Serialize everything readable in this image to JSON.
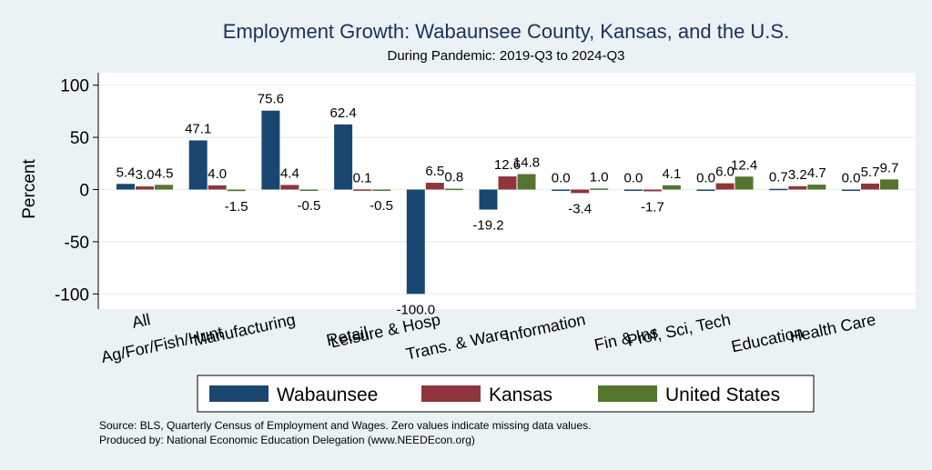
{
  "chart_data": {
    "type": "bar",
    "title": "Employment Growth: Wabaunsee County, Kansas, and the U.S.",
    "subtitle": "During Pandemic: 2019-Q3 to 2024-Q3",
    "xlabel": "",
    "ylabel": "Percent",
    "ylim": [
      -115,
      115
    ],
    "yticks": [
      100,
      50,
      0,
      -50,
      -100
    ],
    "grid": true,
    "legend_position": "bottom",
    "categories": [
      "All",
      "Ag/For/Fish/Hunt",
      "Manufacturing",
      "Retail",
      "Leisure & Hosp",
      "Trans. & Ware.",
      "Information",
      "Fin & Ins",
      "Prof, Sci, Tech",
      "Education",
      "Health Care"
    ],
    "series": [
      {
        "name": "Wabaunsee",
        "color": "#1a476f",
        "values": [
          5.4,
          47.1,
          75.6,
          62.4,
          -100.0,
          -19.2,
          0.0,
          0.0,
          0.0,
          0.7,
          0.0
        ],
        "labels": [
          "5.4",
          "47.1",
          "75.6",
          "62.4",
          "-100.0",
          "-19.2",
          "0.0",
          "0.0",
          "0.0",
          "0.7",
          "0.0"
        ]
      },
      {
        "name": "Kansas",
        "color": "#90353b",
        "values": [
          3.0,
          4.0,
          4.4,
          0.1,
          6.5,
          12.6,
          -3.4,
          -1.7,
          6.0,
          3.2,
          5.7
        ],
        "labels": [
          "3.0",
          "4.0",
          "4.4",
          "0.1",
          "6.5",
          "12.6",
          "-3.4",
          "-1.7",
          "6.0",
          "3.2",
          "5.7"
        ]
      },
      {
        "name": "United States",
        "color": "#55752f",
        "values": [
          4.5,
          -1.5,
          -0.5,
          -0.5,
          0.8,
          14.8,
          1.0,
          4.1,
          12.4,
          4.7,
          9.7
        ],
        "labels": [
          "4.5",
          "-1.5",
          "-0.5",
          "-0.5",
          "0.8",
          "14.8",
          "1.0",
          "4.1",
          "12.4",
          "4.7",
          "9.7"
        ]
      }
    ]
  },
  "footer": {
    "source": "Source: BLS, Quarterly Census of Employment and Wages. Zero values indicate missing data values.",
    "produced": "Produced by: National Economic Education Delegation (www.NEEDEcon.org)"
  }
}
